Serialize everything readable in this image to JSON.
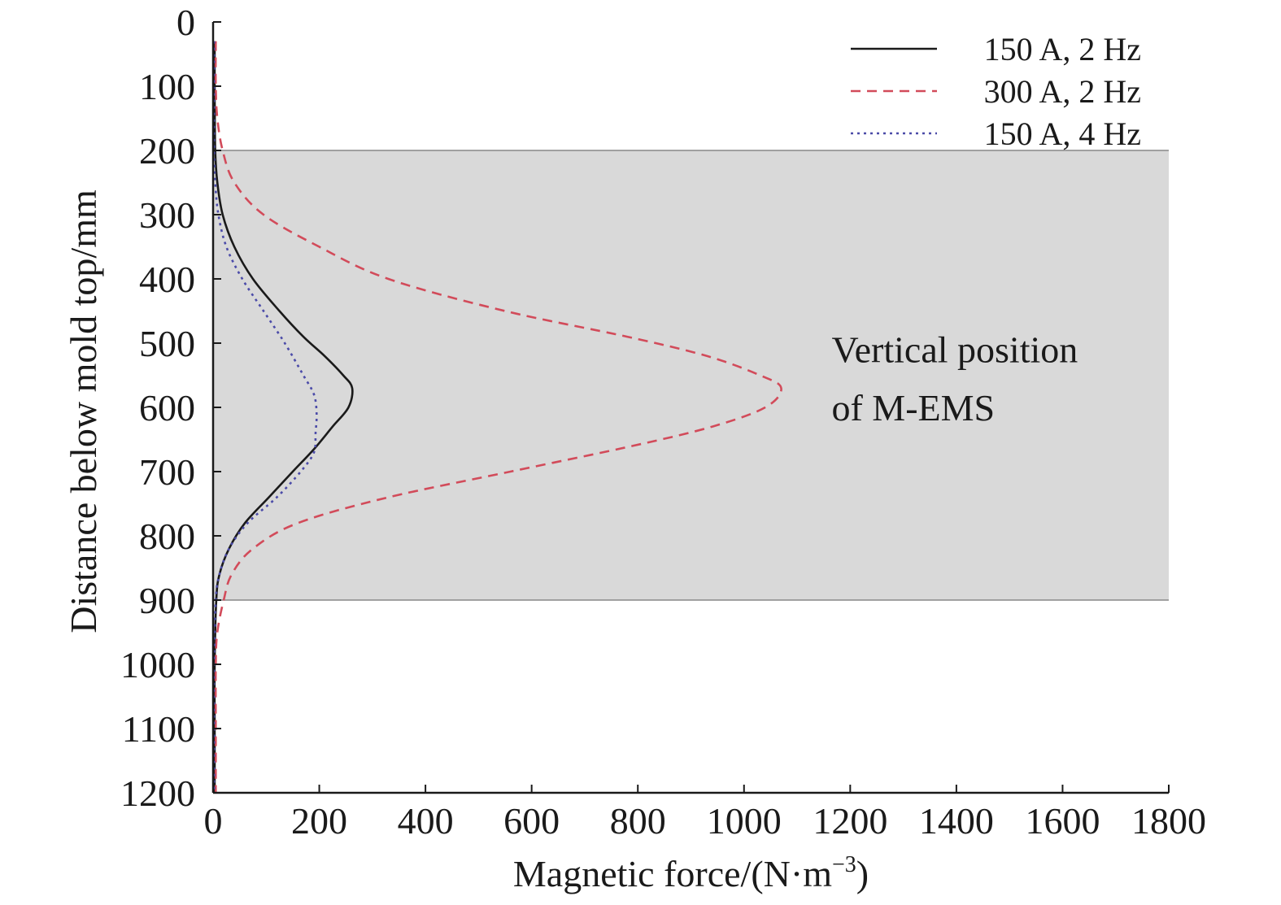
{
  "chart_data": {
    "type": "line",
    "xlabel": "Magnetic force/(N·m",
    "xlabel_sup": "−3",
    "xlabel_end": ")",
    "ylabel": "Distance below mold top/mm",
    "xlim": [
      0,
      1800
    ],
    "ylim": [
      0,
      1200
    ],
    "y_inverted": true,
    "x_ticks": [
      0,
      200,
      400,
      600,
      800,
      1000,
      1200,
      1400,
      1600,
      1800
    ],
    "y_ticks": [
      0,
      100,
      200,
      300,
      400,
      500,
      600,
      700,
      800,
      900,
      1000,
      1100,
      1200
    ],
    "grid": false,
    "legend_position": "top-right",
    "shaded_region": {
      "y_from": 200,
      "y_to": 900,
      "color": "#d9d9d9"
    },
    "annotation": {
      "lines": [
        "Vertical position",
        "of M-EMS"
      ],
      "x": 1165,
      "y_lines": [
        530,
        620
      ]
    },
    "series": [
      {
        "name": "150 A, 2 Hz",
        "color": "#1a1a1a",
        "dash": "none",
        "points": [
          [
            3,
            30
          ],
          [
            3,
            100
          ],
          [
            4,
            200
          ],
          [
            8,
            250
          ],
          [
            18,
            300
          ],
          [
            40,
            350
          ],
          [
            75,
            400
          ],
          [
            125,
            450
          ],
          [
            170,
            490
          ],
          [
            210,
            520
          ],
          [
            245,
            550
          ],
          [
            262,
            570
          ],
          [
            255,
            600
          ],
          [
            225,
            630
          ],
          [
            190,
            665
          ],
          [
            150,
            700
          ],
          [
            105,
            740
          ],
          [
            60,
            780
          ],
          [
            30,
            820
          ],
          [
            12,
            860
          ],
          [
            6,
            900
          ],
          [
            3,
            1000
          ],
          [
            3,
            1100
          ],
          [
            3,
            1200
          ]
        ]
      },
      {
        "name": "300 A, 2 Hz",
        "color": "#d24b5a",
        "dash": "12,8",
        "points": [
          [
            5,
            30
          ],
          [
            5,
            100
          ],
          [
            8,
            150
          ],
          [
            18,
            200
          ],
          [
            40,
            250
          ],
          [
            95,
            300
          ],
          [
            200,
            350
          ],
          [
            330,
            400
          ],
          [
            550,
            450
          ],
          [
            780,
            490
          ],
          [
            930,
            520
          ],
          [
            1030,
            550
          ],
          [
            1070,
            570
          ],
          [
            1040,
            600
          ],
          [
            940,
            630
          ],
          [
            790,
            660
          ],
          [
            560,
            700
          ],
          [
            330,
            740
          ],
          [
            160,
            780
          ],
          [
            75,
            820
          ],
          [
            35,
            860
          ],
          [
            20,
            900
          ],
          [
            8,
            950
          ],
          [
            5,
            1000
          ],
          [
            5,
            1100
          ],
          [
            5,
            1200
          ]
        ]
      },
      {
        "name": "150 A, 4 Hz",
        "color": "#4b4ba8",
        "dash": "3,5",
        "points": [
          [
            2,
            30
          ],
          [
            2,
            100
          ],
          [
            2,
            200
          ],
          [
            4,
            250
          ],
          [
            10,
            300
          ],
          [
            25,
            350
          ],
          [
            55,
            400
          ],
          [
            95,
            450
          ],
          [
            135,
            500
          ],
          [
            170,
            550
          ],
          [
            190,
            580
          ],
          [
            195,
            610
          ],
          [
            193,
            640
          ],
          [
            190,
            670
          ],
          [
            165,
            700
          ],
          [
            120,
            740
          ],
          [
            65,
            780
          ],
          [
            30,
            820
          ],
          [
            12,
            860
          ],
          [
            5,
            900
          ],
          [
            2,
            1000
          ],
          [
            2,
            1100
          ],
          [
            2,
            1200
          ]
        ]
      }
    ]
  }
}
